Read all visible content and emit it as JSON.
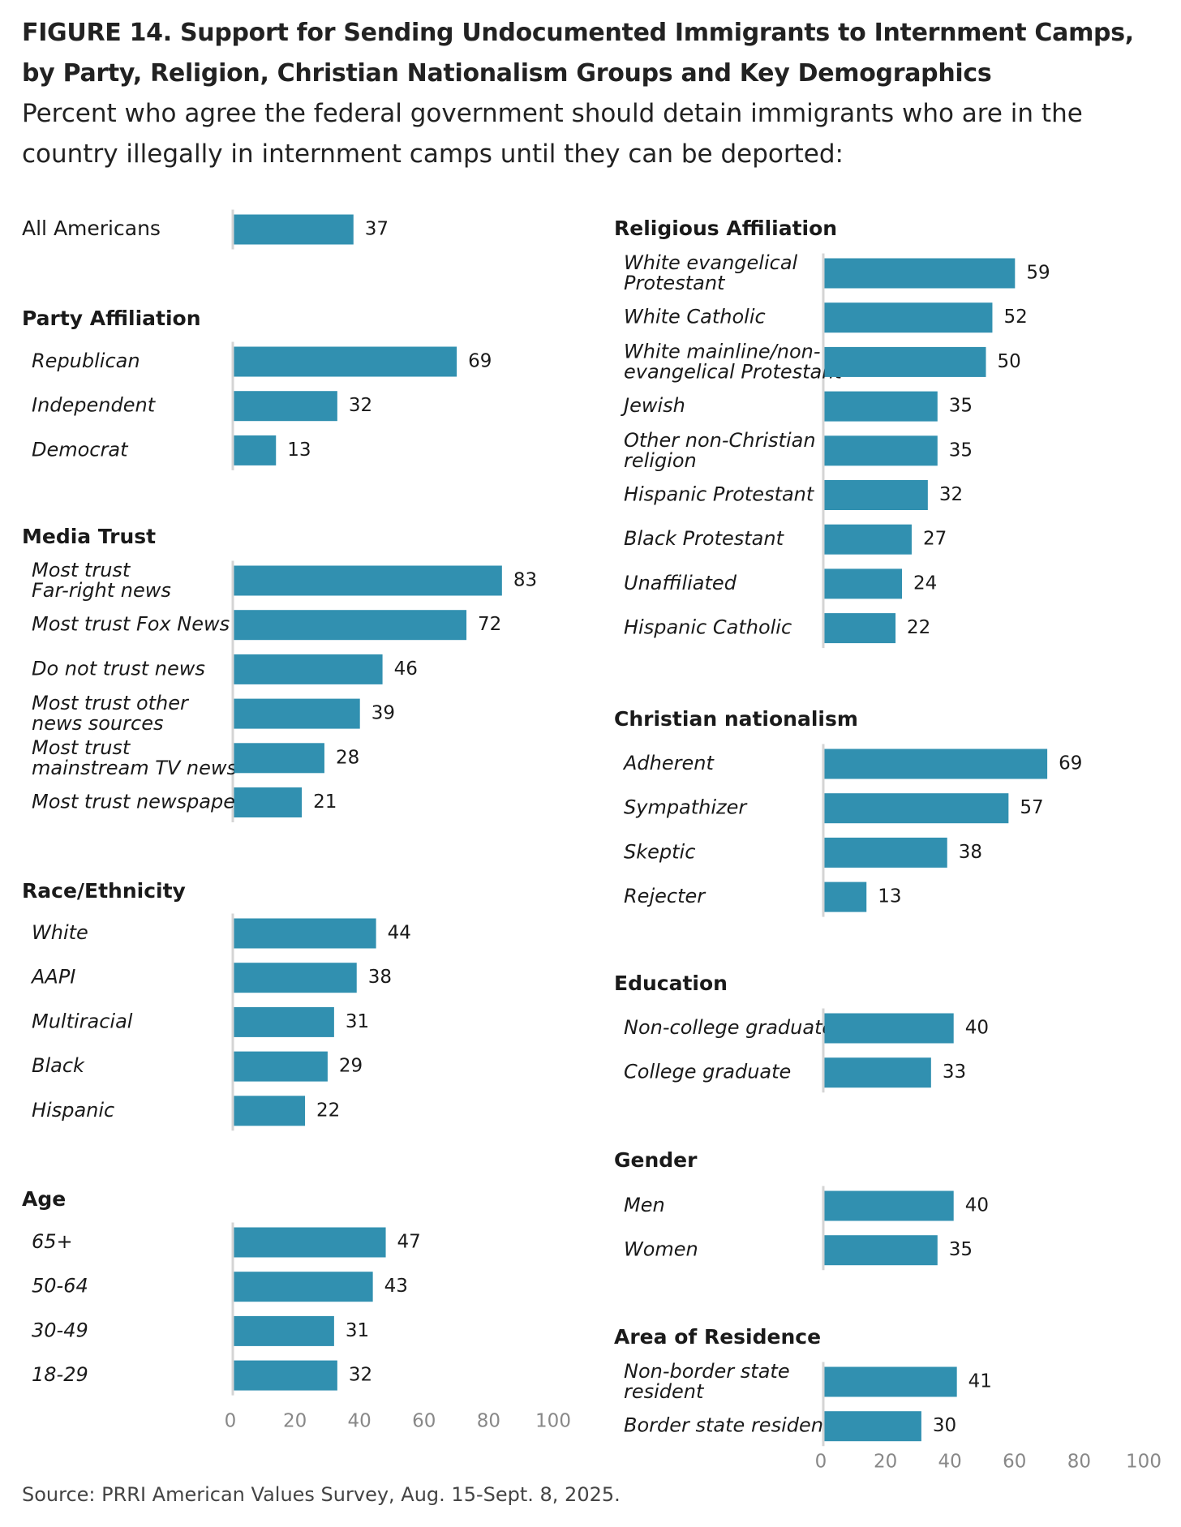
{
  "title": "FIGURE 14. Support for Sending Undocumented Immigrants to Internment Camps, by Party, Religion, Christian Nationalism Groups and Key Demographics",
  "subtitle": "Percent who agree the federal government should detain immigrants who are in the country illegally in internment camps until they can be deported:",
  "source": "Source: PRRI American Values Survey, Aug. 15-Sept. 8, 2025.",
  "colors": {
    "bar": "#3190b0",
    "axis": "#d4d4d4",
    "tick": "#888888"
  },
  "chart_data": [
    {
      "type": "bar",
      "orientation": "horizontal",
      "panel": "left",
      "xlim": [
        0,
        100
      ],
      "xticks": [
        0,
        20,
        40,
        60,
        80,
        100
      ],
      "groups": [
        {
          "name": "",
          "italic": false,
          "categories": [
            [
              "All Americans"
            ]
          ],
          "values": [
            37
          ]
        },
        {
          "name": "Party Affiliation",
          "categories": [
            [
              "Republican"
            ],
            [
              "Independent"
            ],
            [
              "Democrat"
            ]
          ],
          "values": [
            69,
            32,
            13
          ]
        },
        {
          "name": "Media Trust",
          "categories": [
            [
              "Most trust",
              "Far-right news"
            ],
            [
              "Most trust Fox News"
            ],
            [
              "Do not trust news"
            ],
            [
              "Most trust other",
              "news sources"
            ],
            [
              "Most trust",
              "mainstream TV news"
            ],
            [
              "Most trust newspapers"
            ]
          ],
          "values": [
            83,
            72,
            46,
            39,
            28,
            21
          ]
        },
        {
          "name": "Race/Ethnicity",
          "categories": [
            [
              "White"
            ],
            [
              "AAPI"
            ],
            [
              "Multiracial"
            ],
            [
              "Black"
            ],
            [
              "Hispanic"
            ]
          ],
          "values": [
            44,
            38,
            31,
            29,
            22
          ]
        },
        {
          "name": "Age",
          "categories": [
            [
              "65+"
            ],
            [
              "50-64"
            ],
            [
              "30-49"
            ],
            [
              "18-29"
            ]
          ],
          "values": [
            47,
            43,
            31,
            32
          ]
        }
      ]
    },
    {
      "type": "bar",
      "orientation": "horizontal",
      "panel": "right",
      "xlim": [
        0,
        100
      ],
      "xticks": [
        0,
        20,
        40,
        60,
        80,
        100
      ],
      "groups": [
        {
          "name": "Religious Affiliation",
          "categories": [
            [
              "White evangelical",
              "Protestant"
            ],
            [
              "White Catholic"
            ],
            [
              "White mainline/non-",
              "evangelical Protestant"
            ],
            [
              "Jewish"
            ],
            [
              "Other non-Christian",
              "religion"
            ],
            [
              "Hispanic Protestant"
            ],
            [
              "Black Protestant"
            ],
            [
              "Unaffiliated"
            ],
            [
              "Hispanic Catholic"
            ]
          ],
          "values": [
            59,
            52,
            50,
            35,
            35,
            32,
            27,
            24,
            22
          ]
        },
        {
          "name": "Christian nationalism",
          "categories": [
            [
              "Adherent"
            ],
            [
              "Sympathizer"
            ],
            [
              "Skeptic"
            ],
            [
              "Rejecter"
            ]
          ],
          "values": [
            69,
            57,
            38,
            13
          ]
        },
        {
          "name": "Education",
          "categories": [
            [
              "Non-college graduate"
            ],
            [
              "College graduate"
            ]
          ],
          "values": [
            40,
            33
          ]
        },
        {
          "name": "Gender",
          "categories": [
            [
              "Men"
            ],
            [
              "Women"
            ]
          ],
          "values": [
            40,
            35
          ]
        },
        {
          "name": "Area of Residence",
          "categories": [
            [
              "Non-border state",
              "resident"
            ],
            [
              "Border state resident"
            ]
          ],
          "values": [
            41,
            30
          ]
        }
      ]
    }
  ]
}
